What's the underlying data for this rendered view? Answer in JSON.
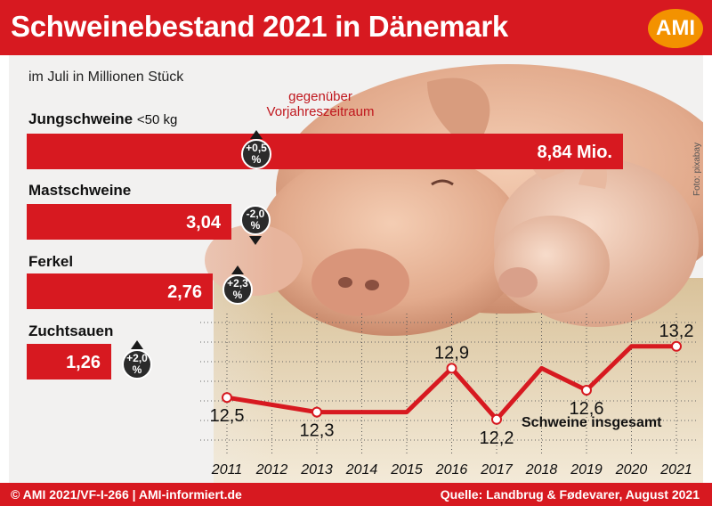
{
  "title": "Schweinebestand 2021 in Dänemark",
  "logo": "AMI",
  "photo_credit": "Foto: pixabay",
  "subtitle": "im Juli in Millionen Stück",
  "change_note": "gegenüber Vorjahreszeitraum",
  "footer": {
    "left": "© AMI 2021/VF-I-266 | AMI-informiert.de",
    "right": "Quelle: Landbrug & Fødevarer, August 2021"
  },
  "colors": {
    "red": "#d71920",
    "orange": "#f39200",
    "badge": "#2b2b2b"
  },
  "chart_data": [
    {
      "type": "bar",
      "orientation": "horizontal",
      "categories": [
        {
          "label": "Jungschweine",
          "unit_note": "<50 kg",
          "value": 8.84,
          "value_label": "8,84 Mio.",
          "change_label": "+0,5",
          "change_unit": "%",
          "direction": "up"
        },
        {
          "label": "Mastschweine",
          "unit_note": "",
          "value": 3.04,
          "value_label": "3,04",
          "change_label": "-2,0",
          "change_unit": "%",
          "direction": "down"
        },
        {
          "label": "Ferkel",
          "unit_note": "",
          "value": 2.76,
          "value_label": "2,76",
          "change_label": "+2,3",
          "change_unit": "%",
          "direction": "up"
        },
        {
          "label": "Zuchtsauen",
          "unit_note": "",
          "value": 1.26,
          "value_label": "1,26",
          "change_label": "+2,0",
          "change_unit": "%",
          "direction": "up"
        }
      ]
    },
    {
      "type": "line",
      "series_label": "Schweine insgesamt",
      "x": [
        "2011",
        "2012",
        "2013",
        "2014",
        "2015",
        "2016",
        "2017",
        "2018",
        "2019",
        "2020",
        "2021"
      ],
      "y": [
        12.5,
        12.4,
        12.3,
        12.3,
        12.3,
        12.9,
        12.2,
        12.9,
        12.6,
        13.2,
        13.2
      ],
      "markers": [
        {
          "index": 0,
          "label": "12,5",
          "pos": "below"
        },
        {
          "index": 2,
          "label": "12,3",
          "pos": "below"
        },
        {
          "index": 5,
          "label": "12,9",
          "pos": "above"
        },
        {
          "index": 6,
          "label": "12,2",
          "pos": "below"
        },
        {
          "index": 8,
          "label": "12,6",
          "pos": "below"
        },
        {
          "index": 10,
          "label": "13,2",
          "pos": "above"
        }
      ],
      "ylim": [
        11.6,
        13.6
      ],
      "grid": true
    }
  ]
}
